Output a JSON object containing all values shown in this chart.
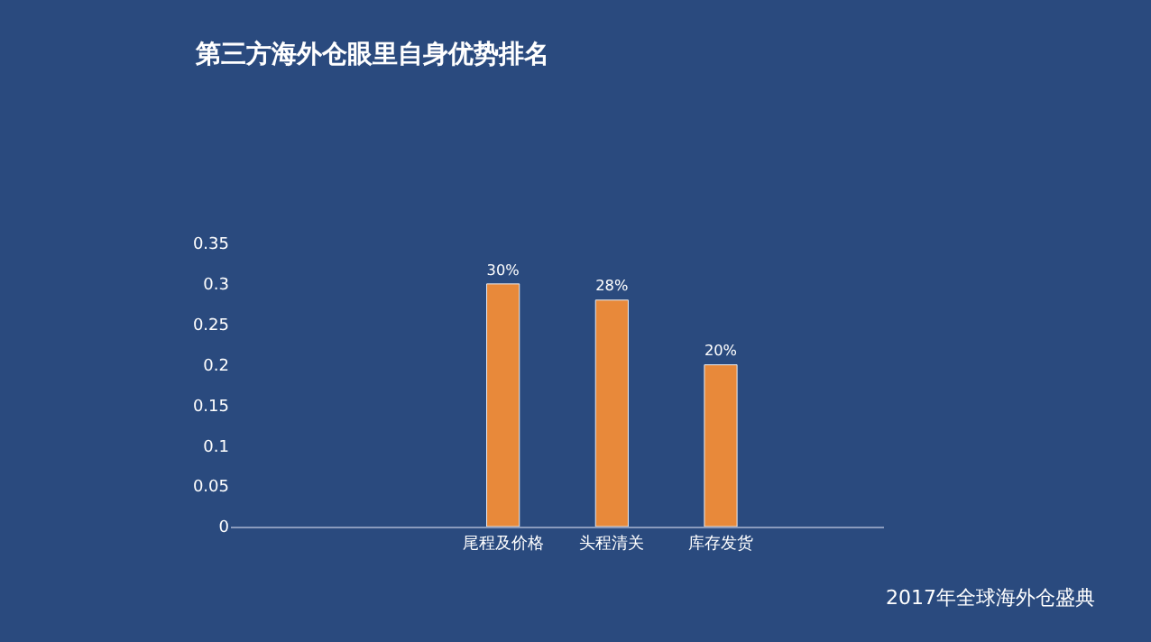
{
  "chart_data": {
    "type": "bar",
    "title": "第三方海外仓眼里自身优势排名",
    "categories": [
      null,
      null,
      "尾程及价格",
      "头程清关",
      "库存发货",
      null
    ],
    "values": [
      null,
      null,
      0.3,
      0.28,
      0.2,
      null
    ],
    "value_labels": [
      null,
      null,
      "30%",
      "28%",
      "20%",
      null
    ],
    "color": "#e8893a",
    "ylim": [
      0,
      0.35
    ],
    "yticks": [
      {
        "value": 0,
        "label": "0"
      },
      0.05,
      0.1,
      0.15,
      0.2,
      0.25,
      0.3,
      0.35
    ],
    "grid": false,
    "legend": false,
    "annotations": [
      "2017年全球海外仓盛典"
    ]
  }
}
